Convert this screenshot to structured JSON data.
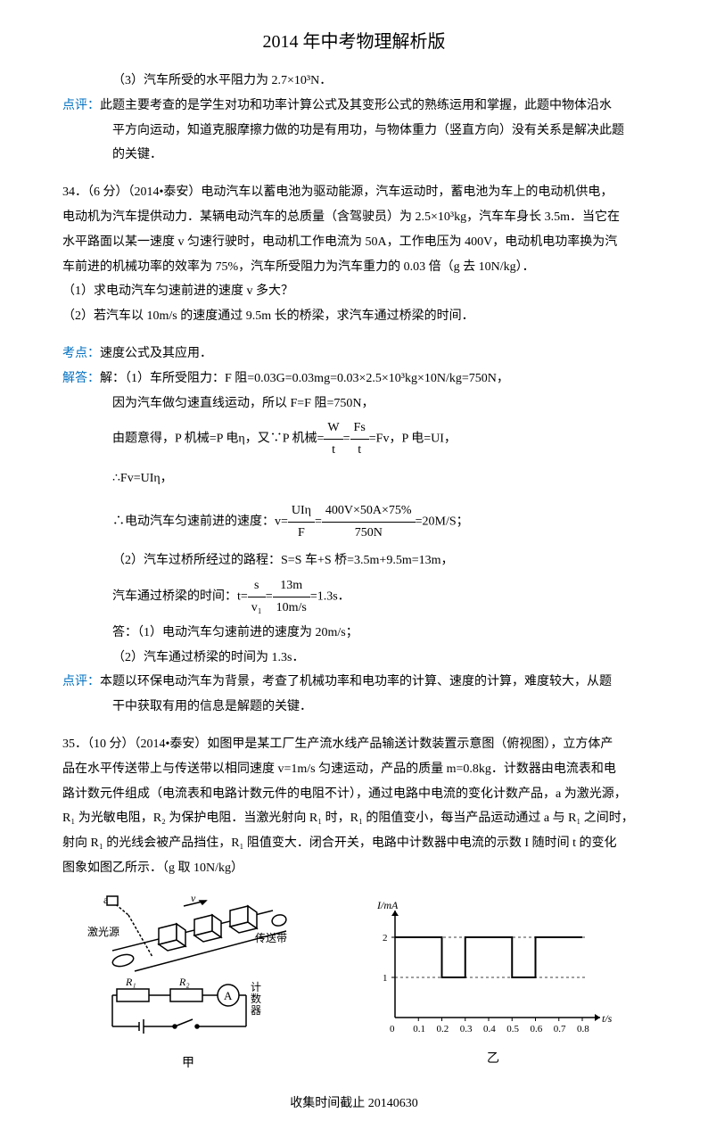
{
  "header": "2014 年中考物理解析版",
  "line1": "（3）汽车所受的水平阻力为 2.7×10³N．",
  "review1_label": "点评：",
  "review1_text1": "此题主要考查的是学生对功和功率计算公式及其变形公式的熟练运用和掌握，此题中物体沿水",
  "review1_text2": "平方向运动，知道克服摩擦力做的功是有用功，与物体重力（竖直方向）没有关系是解决此题",
  "review1_text3": "的关键．",
  "q34_line1": "34．（6 分）（2014•泰安）电动汽车以蓄电池为驱动能源，汽车运动时，蓄电池为车上的电动机供电，",
  "q34_line2": "电动机为汽车提供动力．某辆电动汽车的总质量（含驾驶员）为 2.5×10³kg，汽车车身长 3.5m．当它在",
  "q34_line3": "水平路面以某一速度 v 匀速行驶时，电动机工作电流为 50A，工作电压为 400V，电动机电功率换为汽",
  "q34_line4": "车前进的机械功率的效率为 75%，汽车所受阻力为汽车重力的 0.03 倍（g 去 10N/kg）．",
  "q34_sub1": "（1）求电动汽车匀速前进的速度 v 多大？",
  "q34_sub2": "（2）若汽车以 10m/s 的速度通过 9.5m 长的桥梁，求汽车通过桥梁的时间．",
  "concept_label": "考点：",
  "concept_text": "速度公式及其应用．",
  "answer_label": "解答：",
  "ans_line1": "解：（1）车所受阻力：F 阻=0.03G=0.03mg=0.03×2.5×10³kg×10N/kg=750N，",
  "ans_line2": "因为汽车做匀速直线运动，所以 F=F 阻=750N，",
  "ans_line3_part1": "由题意得，P 机械=P 电η，又∵P 机械=",
  "ans_line3_frac1_top": "W",
  "ans_line3_frac1_bot": "t",
  "ans_line3_mid": "=",
  "ans_line3_frac2_top": "Fs",
  "ans_line3_frac2_bot": "t",
  "ans_line3_part2": "=Fv，P 电=UI，",
  "ans_line4": "∴Fv=UIη，",
  "ans_line5_part1": "∴电动汽车匀速前进的速度：v=",
  "ans_line5_frac1_top": "UIη",
  "ans_line5_frac1_bot": "F",
  "ans_line5_mid": "=",
  "ans_line5_frac2_top": "400V×50A×75%",
  "ans_line5_frac2_bot": "750N",
  "ans_line5_part2": "=20M/S；",
  "ans_line6": "（2）汽车过桥所经过的路程：S=S 车+S 桥=3.5m+9.5m=13m，",
  "ans_line7_part1": "汽车通过桥梁的时间：t=",
  "ans_line7_frac1_top": "s",
  "ans_line7_frac1_bot": "v₁",
  "ans_line7_mid": "=",
  "ans_line7_frac2_top": "13m",
  "ans_line7_frac2_bot": "10m/s",
  "ans_line7_part2": "=1.3s．",
  "ans_line8": "答：（1）电动汽车匀速前进的速度为 20m/s；",
  "ans_line9": "（2）汽车通过桥梁的时间为 1.3s．",
  "review2_label": "点评：",
  "review2_text1": "本题以环保电动汽车为背景，考查了机械功率和电功率的计算、速度的计算，难度较大，从题",
  "review2_text2": "干中获取有用的信息是解题的关键．",
  "q35_line1": "35．（10 分）（2014•泰安）如图甲是某工厂生产流水线产品输送计数装置示意图（俯视图），立方体产",
  "q35_line2": "品在水平传送带上与传送带以相同速度 v=1m/s 匀速运动，产品的质量 m=0.8kg．计数器由电流表和电",
  "q35_line3": "路计数元件组成（电流表和电路计数元件的电阻不计），通过电路中电流的变化计数产品，a 为激光源，",
  "q35_line4": "R₁ 为光敏电阻，R₂ 为保护电阻．当激光射向 R₁ 时，R₁ 的阻值变小，每当产品运动通过 a 与 R₁ 之间时，",
  "q35_line5": "射向 R₁ 的光线会被产品挡住，R₁ 阻值变大．闭合开关，电路中计数器中电流的示数 I 随时间 t 的变化",
  "q35_line6": "图象如图乙所示．（g 取 10N/kg）",
  "fig_left_caption": "甲",
  "fig_right_caption": "乙",
  "fig_left_labels": {
    "a": "a",
    "laser": "激光源",
    "v": "v",
    "belt": "传送带",
    "r1": "R₁",
    "r2": "R₂",
    "counter": "计数器"
  },
  "chart": {
    "y_label": "I/mA",
    "x_label": "t/s",
    "x_ticks": [
      "0",
      "0.1",
      "0.2",
      "0.3",
      "0.4",
      "0.5",
      "0.6",
      "0.7",
      "0.8"
    ],
    "y_ticks": [
      "1",
      "2"
    ],
    "high": 2,
    "low": 1,
    "axis_color": "#000000"
  },
  "footer": "收集时间截止 20140630"
}
